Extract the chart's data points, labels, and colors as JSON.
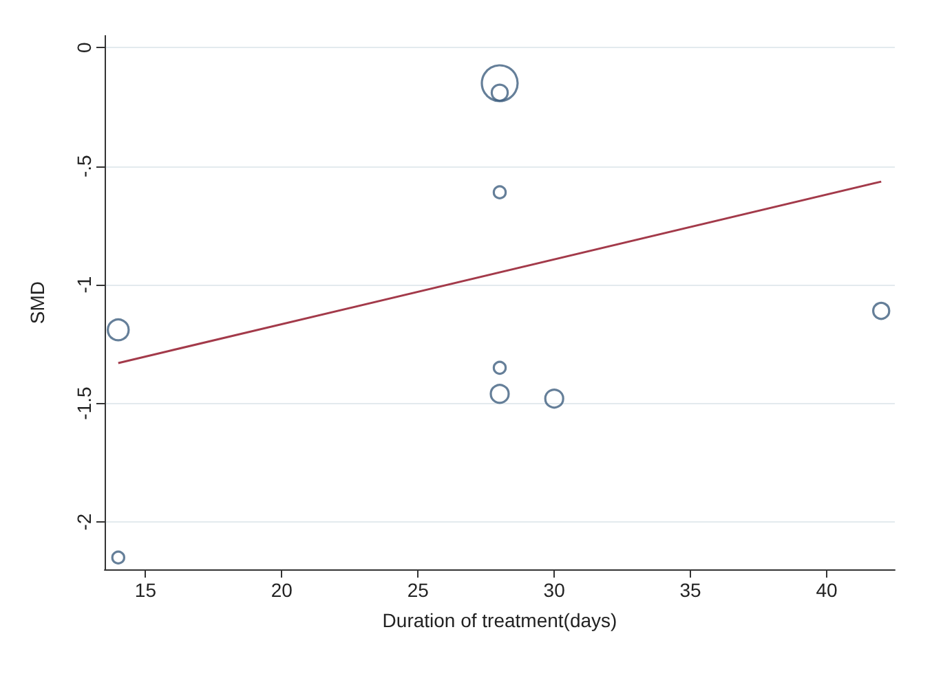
{
  "chart_data": {
    "type": "bubble",
    "xlabel": "Duration of treatment(days)",
    "ylabel": "SMD",
    "xlim": [
      13.5,
      42.5
    ],
    "xticks": [
      15,
      20,
      25,
      30,
      35,
      40
    ],
    "ylim": [
      -2.2,
      0.05
    ],
    "yticks": [
      0,
      {
        "value": -0.5,
        "label": "-.5"
      },
      -1,
      {
        "value": -1.5,
        "label": "-1.5"
      },
      -2
    ],
    "grid": "y",
    "marker": "circle",
    "series": [
      {
        "color": "#3f5f80",
        "x": [
          14,
          14,
          28,
          28,
          28,
          28,
          28,
          30,
          42
        ],
        "values": [
          -1.19,
          -2.15,
          -0.15,
          -0.19,
          -0.61,
          -1.35,
          -1.46,
          -1.48,
          -1.11
        ],
        "sizes": [
          0.34,
          0.11,
          1,
          0.2,
          0.11,
          0.11,
          0.25,
          0.25,
          0.2
        ]
      },
      {
        "type": "line",
        "marker": "none",
        "color": "#a33a4a",
        "x": [
          14,
          42
        ],
        "values": [
          -1.33,
          -0.565
        ]
      }
    ]
  }
}
